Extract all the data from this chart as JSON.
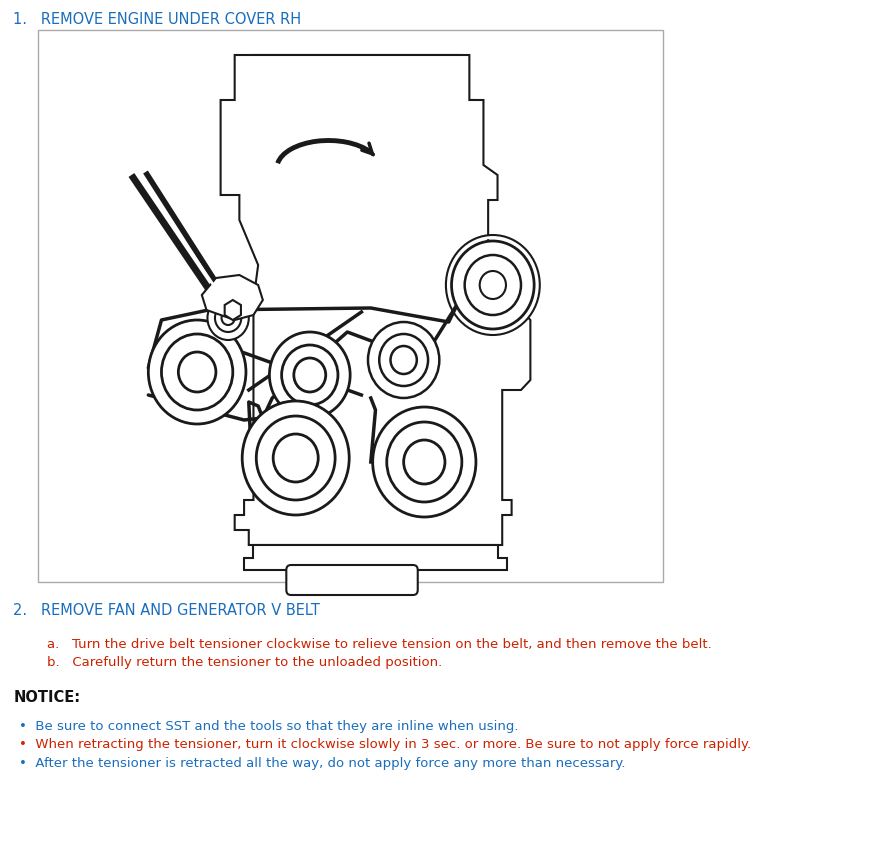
{
  "bg_color": "#ffffff",
  "line_color": "#1a1a1a",
  "heading_color": "#1a6ebd",
  "red_color": "#cc2200",
  "black_color": "#111111",
  "bold_black": "#000000",
  "heading1": "1.   REMOVE ENGINE UNDER COVER RH",
  "heading2": "2.   REMOVE FAN AND GENERATOR V BELT",
  "notice_heading": "NOTICE:",
  "step_a_prefix": "a.   ",
  "step_a_black1": "Turn the drive belt ",
  "step_a_bold": "tensioner",
  "step_a_black2": " clockwise to relieve tension on the belt, and then remove the belt.",
  "step_b_prefix": "b.   ",
  "step_b_black1": "Carefully return the ",
  "step_b_bold": "tensioner",
  "step_b_black2": " to the ",
  "step_b_bold2": "unloaded",
  "step_b_black3": " position.",
  "bullet1_black1": "Be sure to connect SST and the tools so that they are ",
  "bullet1_bold": "inline",
  "bullet1_black2": " when using.",
  "bullet2_all": "When retracting the tensioner, turn it clockwise slowly in 3 sec. or more. Be sure to not apply force rapidly.",
  "bullet3_black1": "After the tensioner is retracted all the way, do not apply force any more than necessary.",
  "font_size_heading": 10.5,
  "font_size_body": 9.5,
  "font_size_notice": 10.5
}
